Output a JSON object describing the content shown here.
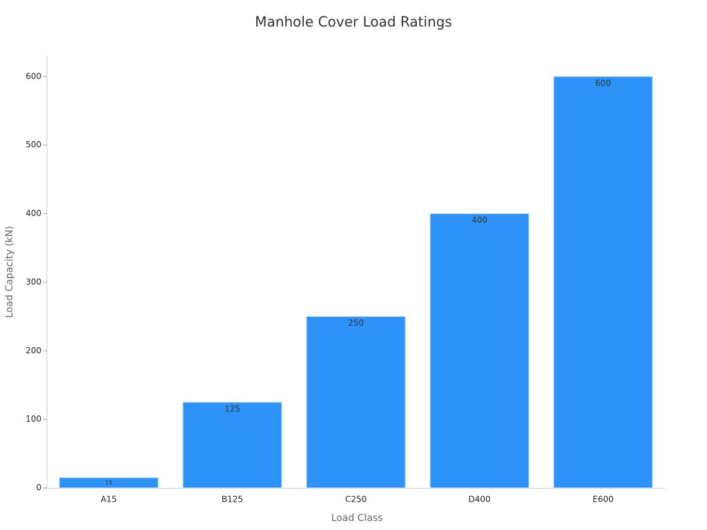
{
  "chart_data": {
    "type": "bar",
    "title": "Manhole Cover Load Ratings",
    "x_label": "Load Class",
    "y_label": "Load Capacity (kN)",
    "categories": [
      "A15",
      "B125",
      "C250",
      "D400",
      "E600"
    ],
    "values": [
      15,
      125,
      250,
      400,
      600
    ],
    "color": "#2e93f9",
    "ylim": [
      0,
      631
    ],
    "yticks": [
      0,
      100,
      200,
      300,
      400,
      500,
      600
    ],
    "grid": false
  }
}
